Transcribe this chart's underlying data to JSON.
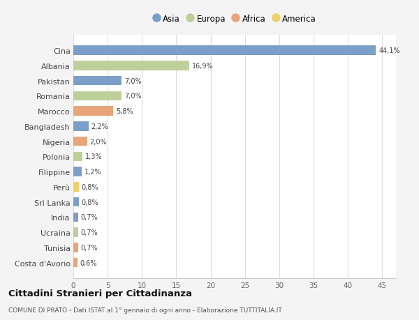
{
  "countries": [
    "Cina",
    "Albania",
    "Pakistan",
    "Romania",
    "Marocco",
    "Bangladesh",
    "Nigeria",
    "Polonia",
    "Filippine",
    "Perù",
    "Sri Lanka",
    "India",
    "Ucraina",
    "Tunisia",
    "Costa d'Avorio"
  ],
  "values": [
    44.1,
    16.9,
    7.0,
    7.0,
    5.8,
    2.2,
    2.0,
    1.3,
    1.2,
    0.8,
    0.8,
    0.7,
    0.7,
    0.7,
    0.6
  ],
  "labels": [
    "44,1%",
    "16,9%",
    "7,0%",
    "7,0%",
    "5,8%",
    "2,2%",
    "2,0%",
    "1,3%",
    "1,2%",
    "0,8%",
    "0,8%",
    "0,7%",
    "0,7%",
    "0,7%",
    "0,6%"
  ],
  "continents": [
    "Asia",
    "Europa",
    "Asia",
    "Europa",
    "Africa",
    "Asia",
    "Africa",
    "Europa",
    "Asia",
    "America",
    "Asia",
    "Asia",
    "Europa",
    "Africa",
    "Africa"
  ],
  "continent_colors": {
    "Asia": "#7b9fc9",
    "Europa": "#bdd09a",
    "Africa": "#e8a47a",
    "America": "#f0d06a"
  },
  "legend_order": [
    "Asia",
    "Europa",
    "Africa",
    "America"
  ],
  "title": "Cittadini Stranieri per Cittadinanza",
  "subtitle": "COMUNE DI PRATO - Dati ISTAT al 1° gennaio di ogni anno - Elaborazione TUTTITALIA.IT",
  "background_color": "#f4f4f4",
  "plot_background_color": "#ffffff",
  "xlim": [
    0,
    47
  ],
  "xticks": [
    0,
    5,
    10,
    15,
    20,
    25,
    30,
    35,
    40,
    45
  ]
}
